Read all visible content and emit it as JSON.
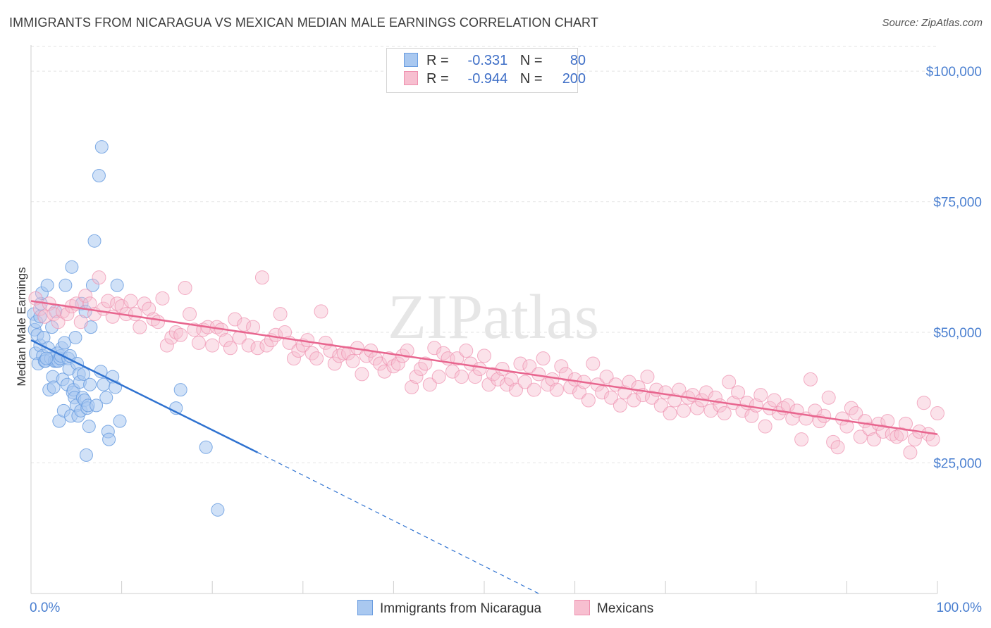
{
  "title": "IMMIGRANTS FROM NICARAGUA VS MEXICAN MEDIAN MALE EARNINGS CORRELATION CHART",
  "source": "Source: ZipAtlas.com",
  "watermark": "ZIPatlas",
  "legend": {
    "rows": [
      {
        "r_label": "R =",
        "r_value": "-0.331",
        "n_label": "N =",
        "n_value": "80"
      },
      {
        "r_label": "R =",
        "r_value": "-0.944",
        "n_label": "N =",
        "n_value": "200"
      }
    ]
  },
  "bottom_legend": [
    "Immigrants from Nicaragua",
    "Mexicans"
  ],
  "colors": {
    "blue_fill": "#a9c8f0",
    "blue_stroke": "#6a9de0",
    "blue_line": "#2f72d0",
    "pink_fill": "#f7bfd0",
    "pink_stroke": "#ee8fae",
    "pink_line": "#e8668f",
    "tick_text": "#4a7fd0",
    "grid": "#e3e3e3"
  },
  "chart_data": {
    "type": "scatter",
    "title": "IMMIGRANTS FROM NICARAGUA VS MEXICAN MEDIAN MALE EARNINGS CORRELATION CHART",
    "xlabel": "",
    "ylabel": "Median Male Earnings",
    "xlim": [
      0,
      100
    ],
    "ylim": [
      0,
      105000
    ],
    "x_tick_labels": [
      "0.0%",
      "100.0%"
    ],
    "y_ticks": [
      25000,
      50000,
      75000,
      100000
    ],
    "y_tick_labels": [
      "$25,000",
      "$50,000",
      "$75,000",
      "$100,000"
    ],
    "grid": true,
    "legend_placement": "top-center",
    "series": [
      {
        "name": "Immigrants from Nicaragua",
        "r": -0.331,
        "n": 80,
        "trend": {
          "x0": 0,
          "y0": 48500,
          "x1": 25,
          "y1": 27000,
          "dashed_to_x": 56,
          "dashed_to_y": 0
        },
        "points": [
          [
            0.3,
            53500
          ],
          [
            0.4,
            50500
          ],
          [
            0.5,
            46000
          ],
          [
            0.6,
            52000
          ],
          [
            0.7,
            49500
          ],
          [
            0.8,
            44000
          ],
          [
            1.0,
            47500
          ],
          [
            1.1,
            55500
          ],
          [
            1.2,
            57500
          ],
          [
            1.3,
            45500
          ],
          [
            1.4,
            49000
          ],
          [
            1.5,
            44500
          ],
          [
            1.6,
            44500
          ],
          [
            1.8,
            59000
          ],
          [
            1.9,
            47000
          ],
          [
            2.0,
            39000
          ],
          [
            2.2,
            45000
          ],
          [
            2.3,
            51000
          ],
          [
            2.4,
            41500
          ],
          [
            2.5,
            39500
          ],
          [
            2.6,
            44500
          ],
          [
            2.7,
            54000
          ],
          [
            2.8,
            44500
          ],
          [
            2.9,
            46000
          ],
          [
            3.0,
            44500
          ],
          [
            3.1,
            33000
          ],
          [
            3.2,
            45000
          ],
          [
            3.3,
            45500
          ],
          [
            3.4,
            47000
          ],
          [
            3.5,
            41000
          ],
          [
            3.6,
            35000
          ],
          [
            3.7,
            48000
          ],
          [
            3.8,
            59000
          ],
          [
            4.0,
            40000
          ],
          [
            4.1,
            45000
          ],
          [
            4.2,
            43000
          ],
          [
            4.3,
            45500
          ],
          [
            4.4,
            34000
          ],
          [
            4.5,
            62500
          ],
          [
            4.6,
            38500
          ],
          [
            4.7,
            39000
          ],
          [
            4.8,
            37500
          ],
          [
            4.9,
            49000
          ],
          [
            5.0,
            36000
          ],
          [
            5.1,
            44000
          ],
          [
            5.2,
            34000
          ],
          [
            5.3,
            42000
          ],
          [
            5.4,
            40500
          ],
          [
            5.5,
            35000
          ],
          [
            5.6,
            55500
          ],
          [
            5.7,
            37500
          ],
          [
            5.8,
            42000
          ],
          [
            5.9,
            37000
          ],
          [
            6.0,
            54000
          ],
          [
            6.1,
            26500
          ],
          [
            6.2,
            35500
          ],
          [
            6.3,
            36000
          ],
          [
            6.4,
            32000
          ],
          [
            6.5,
            40000
          ],
          [
            6.6,
            51000
          ],
          [
            6.8,
            59000
          ],
          [
            7.0,
            67500
          ],
          [
            7.2,
            36000
          ],
          [
            7.5,
            80000
          ],
          [
            7.7,
            42500
          ],
          [
            7.8,
            85500
          ],
          [
            8.0,
            40000
          ],
          [
            8.3,
            37500
          ],
          [
            8.5,
            31000
          ],
          [
            8.6,
            29500
          ],
          [
            9.0,
            41500
          ],
          [
            9.3,
            39500
          ],
          [
            9.5,
            59000
          ],
          [
            9.8,
            33000
          ],
          [
            16.0,
            35500
          ],
          [
            16.5,
            39000
          ],
          [
            19.3,
            28000
          ],
          [
            20.6,
            16000
          ],
          [
            1.0,
            53000
          ],
          [
            1.7,
            45000
          ]
        ]
      },
      {
        "name": "Mexicans",
        "r": -0.944,
        "n": 200,
        "trend": {
          "x0": 0,
          "y0": 56000,
          "x1": 100,
          "y1": 30500
        },
        "points": [
          [
            0.5,
            56500
          ],
          [
            1.0,
            54500
          ],
          [
            1.5,
            53000
          ],
          [
            2.0,
            55500
          ],
          [
            2.5,
            53500
          ],
          [
            3.0,
            52000
          ],
          [
            3.5,
            54000
          ],
          [
            4.0,
            53500
          ],
          [
            4.5,
            55000
          ],
          [
            5.0,
            55500
          ],
          [
            5.5,
            52000
          ],
          [
            6.0,
            57000
          ],
          [
            6.5,
            55500
          ],
          [
            7.0,
            53500
          ],
          [
            7.5,
            60500
          ],
          [
            8.0,
            54500
          ],
          [
            8.5,
            56000
          ],
          [
            9.0,
            53000
          ],
          [
            9.5,
            55500
          ],
          [
            10.0,
            55000
          ],
          [
            10.5,
            53500
          ],
          [
            11.0,
            56000
          ],
          [
            11.5,
            53500
          ],
          [
            12.0,
            51000
          ],
          [
            12.5,
            55500
          ],
          [
            13.0,
            54500
          ],
          [
            13.5,
            52500
          ],
          [
            14.0,
            52000
          ],
          [
            14.5,
            56500
          ],
          [
            15.0,
            47500
          ],
          [
            15.5,
            49000
          ],
          [
            16.0,
            50000
          ],
          [
            16.5,
            49500
          ],
          [
            17.0,
            58500
          ],
          [
            17.5,
            53500
          ],
          [
            18.0,
            50500
          ],
          [
            18.5,
            48000
          ],
          [
            19.0,
            50500
          ],
          [
            19.5,
            51000
          ],
          [
            20.0,
            47500
          ],
          [
            20.5,
            51000
          ],
          [
            21.0,
            50500
          ],
          [
            21.5,
            48500
          ],
          [
            22.0,
            47000
          ],
          [
            22.5,
            52500
          ],
          [
            23.0,
            49000
          ],
          [
            23.5,
            51500
          ],
          [
            24.0,
            47500
          ],
          [
            24.5,
            51000
          ],
          [
            25.0,
            47000
          ],
          [
            25.5,
            60500
          ],
          [
            26.0,
            47500
          ],
          [
            26.5,
            48500
          ],
          [
            27.0,
            49500
          ],
          [
            27.5,
            53500
          ],
          [
            28.0,
            50000
          ],
          [
            28.5,
            48000
          ],
          [
            29.0,
            45000
          ],
          [
            29.5,
            46500
          ],
          [
            30.0,
            47500
          ],
          [
            30.5,
            48500
          ],
          [
            31.0,
            46000
          ],
          [
            31.5,
            45000
          ],
          [
            32.0,
            54000
          ],
          [
            32.5,
            48000
          ],
          [
            33.0,
            46500
          ],
          [
            33.5,
            44000
          ],
          [
            34.0,
            45500
          ],
          [
            34.5,
            46000
          ],
          [
            35.0,
            46000
          ],
          [
            35.5,
            44500
          ],
          [
            36.0,
            47000
          ],
          [
            36.5,
            42000
          ],
          [
            37.0,
            45500
          ],
          [
            37.5,
            46500
          ],
          [
            38.0,
            45000
          ],
          [
            38.5,
            44000
          ],
          [
            39.0,
            42500
          ],
          [
            39.5,
            45000
          ],
          [
            40.0,
            43500
          ],
          [
            40.5,
            44000
          ],
          [
            41.0,
            45500
          ],
          [
            41.5,
            46500
          ],
          [
            42.0,
            39500
          ],
          [
            42.5,
            41500
          ],
          [
            43.0,
            43000
          ],
          [
            43.5,
            44000
          ],
          [
            44.0,
            40000
          ],
          [
            44.5,
            47000
          ],
          [
            45.0,
            41500
          ],
          [
            45.5,
            46000
          ],
          [
            46.0,
            45000
          ],
          [
            46.5,
            42500
          ],
          [
            47.0,
            45000
          ],
          [
            47.5,
            41500
          ],
          [
            48.0,
            46500
          ],
          [
            48.5,
            44000
          ],
          [
            49.0,
            41500
          ],
          [
            49.5,
            43000
          ],
          [
            50.0,
            45500
          ],
          [
            50.5,
            40000
          ],
          [
            51.0,
            42000
          ],
          [
            51.5,
            41000
          ],
          [
            52.0,
            43000
          ],
          [
            52.5,
            40000
          ],
          [
            53.0,
            41000
          ],
          [
            53.5,
            39000
          ],
          [
            54.0,
            44000
          ],
          [
            54.5,
            40500
          ],
          [
            55.0,
            43500
          ],
          [
            55.5,
            39000
          ],
          [
            56.0,
            42000
          ],
          [
            56.5,
            45000
          ],
          [
            57.0,
            40000
          ],
          [
            57.5,
            41000
          ],
          [
            58.0,
            39000
          ],
          [
            58.5,
            43500
          ],
          [
            59.0,
            42000
          ],
          [
            59.5,
            39500
          ],
          [
            60.0,
            41000
          ],
          [
            60.5,
            38500
          ],
          [
            61.0,
            40500
          ],
          [
            61.5,
            37000
          ],
          [
            62.0,
            44000
          ],
          [
            62.5,
            40000
          ],
          [
            63.0,
            38500
          ],
          [
            63.5,
            41500
          ],
          [
            64.0,
            37500
          ],
          [
            64.5,
            40000
          ],
          [
            65.0,
            36000
          ],
          [
            65.5,
            38500
          ],
          [
            66.0,
            40500
          ],
          [
            66.5,
            37000
          ],
          [
            67.0,
            39500
          ],
          [
            67.5,
            38000
          ],
          [
            68.0,
            41500
          ],
          [
            68.5,
            37500
          ],
          [
            69.0,
            39000
          ],
          [
            69.5,
            36000
          ],
          [
            70.0,
            38500
          ],
          [
            70.5,
            34500
          ],
          [
            71.0,
            37000
          ],
          [
            71.5,
            39000
          ],
          [
            72.0,
            35000
          ],
          [
            72.5,
            37500
          ],
          [
            73.0,
            38000
          ],
          [
            73.5,
            35500
          ],
          [
            74.0,
            37000
          ],
          [
            74.5,
            38500
          ],
          [
            75.0,
            35000
          ],
          [
            75.5,
            37500
          ],
          [
            76.0,
            36000
          ],
          [
            76.5,
            34500
          ],
          [
            77.0,
            40500
          ],
          [
            77.5,
            36500
          ],
          [
            78.0,
            38500
          ],
          [
            78.5,
            35000
          ],
          [
            79.0,
            36500
          ],
          [
            79.5,
            34000
          ],
          [
            80.0,
            36000
          ],
          [
            80.5,
            38000
          ],
          [
            81.0,
            32000
          ],
          [
            81.5,
            35500
          ],
          [
            82.0,
            37000
          ],
          [
            82.5,
            34500
          ],
          [
            83.0,
            35500
          ],
          [
            83.5,
            36000
          ],
          [
            84.0,
            33500
          ],
          [
            84.5,
            35000
          ],
          [
            85.0,
            29500
          ],
          [
            85.5,
            33500
          ],
          [
            86.0,
            41000
          ],
          [
            86.5,
            35000
          ],
          [
            87.0,
            33000
          ],
          [
            87.5,
            34000
          ],
          [
            88.0,
            37500
          ],
          [
            88.5,
            29000
          ],
          [
            89.0,
            28000
          ],
          [
            89.5,
            33500
          ],
          [
            90.0,
            32000
          ],
          [
            90.5,
            35500
          ],
          [
            91.0,
            34500
          ],
          [
            91.5,
            30000
          ],
          [
            92.0,
            33000
          ],
          [
            92.5,
            31500
          ],
          [
            93.0,
            29500
          ],
          [
            93.5,
            32500
          ],
          [
            94.0,
            31000
          ],
          [
            94.5,
            33000
          ],
          [
            95.0,
            30500
          ],
          [
            95.5,
            30000
          ],
          [
            96.0,
            30500
          ],
          [
            96.5,
            32500
          ],
          [
            97.0,
            27000
          ],
          [
            97.5,
            29500
          ],
          [
            98.0,
            31000
          ],
          [
            98.5,
            36500
          ],
          [
            99.0,
            30500
          ],
          [
            99.5,
            29500
          ],
          [
            100.0,
            34500
          ]
        ]
      }
    ]
  }
}
